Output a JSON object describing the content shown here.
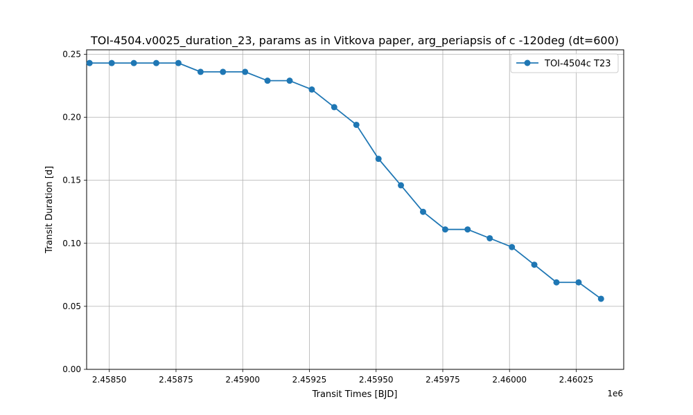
{
  "chart_data": {
    "type": "line",
    "title": "TOI-4504.v0025_duration_23, params as in Vitkova paper, arg_periapsis of c -120deg (dt=600)",
    "xlabel": "Transit Times [BJD]",
    "ylabel": "Transit Duration [d]",
    "x_offset_label": "1e6",
    "xlim": [
      2458415,
      2460428
    ],
    "ylim": [
      0.0,
      0.2535
    ],
    "x_ticks": [
      2458500,
      2458750,
      2459000,
      2459250,
      2459500,
      2459750,
      2460000,
      2460250
    ],
    "x_tick_labels": [
      "2.45850",
      "2.45875",
      "2.45900",
      "2.45925",
      "2.45950",
      "2.45975",
      "2.46000",
      "2.46025"
    ],
    "y_ticks": [
      0.0,
      0.05,
      0.1,
      0.15,
      0.2,
      0.25
    ],
    "y_tick_labels": [
      "0.00",
      "0.05",
      "0.10",
      "0.15",
      "0.20",
      "0.25"
    ],
    "grid": true,
    "legend_position": "top-right",
    "series": [
      {
        "name": "TOI-4504c T23",
        "color": "#1f77b4",
        "marker": "circle",
        "x": [
          2458426,
          2458509,
          2458592,
          2458676,
          2458759,
          2458842,
          2458926,
          2459009,
          2459093,
          2459176,
          2459259,
          2459343,
          2459426,
          2459509,
          2459593,
          2459676,
          2459759,
          2459843,
          2459926,
          2460009,
          2460093,
          2460176,
          2460259,
          2460343
        ],
        "y": [
          0.243,
          0.243,
          0.243,
          0.243,
          0.243,
          0.236,
          0.236,
          0.236,
          0.229,
          0.229,
          0.222,
          0.208,
          0.194,
          0.167,
          0.146,
          0.125,
          0.111,
          0.111,
          0.104,
          0.097,
          0.083,
          0.069,
          0.069,
          0.056
        ]
      }
    ]
  }
}
